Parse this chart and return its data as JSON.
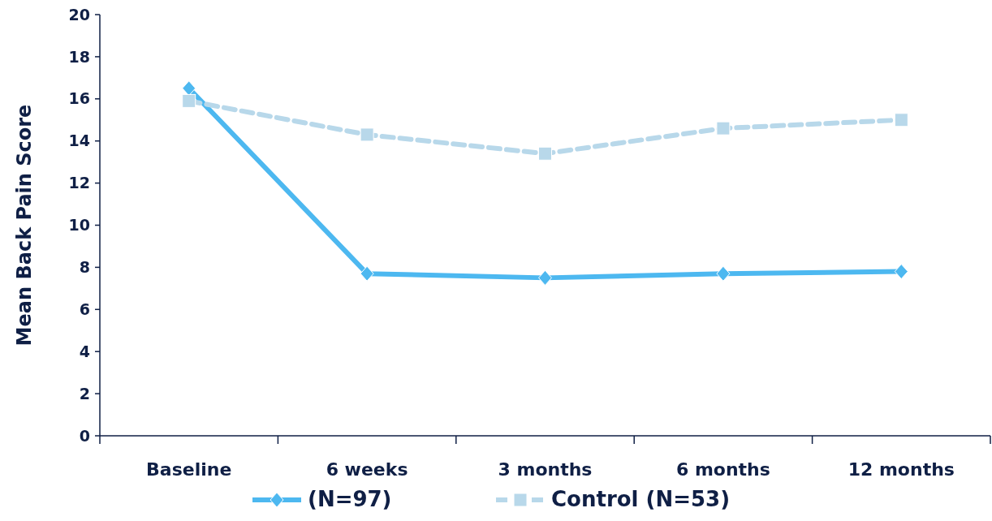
{
  "chart_data": {
    "type": "line",
    "ylabel": "Mean Back Pain Score",
    "categories": [
      "Baseline",
      "6 weeks",
      "3 months",
      "6 months",
      "12 months"
    ],
    "series": [
      {
        "name": "(N=97)",
        "color": "#4db8f0",
        "values": [
          16.5,
          7.7,
          7.5,
          7.7,
          7.8
        ],
        "marker": "diamond",
        "line_style": "solid"
      },
      {
        "name": "Control (N=53)",
        "color": "#b8d8ea",
        "values": [
          15.9,
          14.3,
          13.4,
          14.6,
          15.0
        ],
        "marker": "square",
        "line_style": "dashed"
      }
    ],
    "ylim": [
      0,
      20
    ],
    "yticks": [
      0,
      2,
      4,
      6,
      8,
      10,
      12,
      14,
      16,
      18,
      20
    ],
    "grid": false,
    "legend": "bottom"
  }
}
